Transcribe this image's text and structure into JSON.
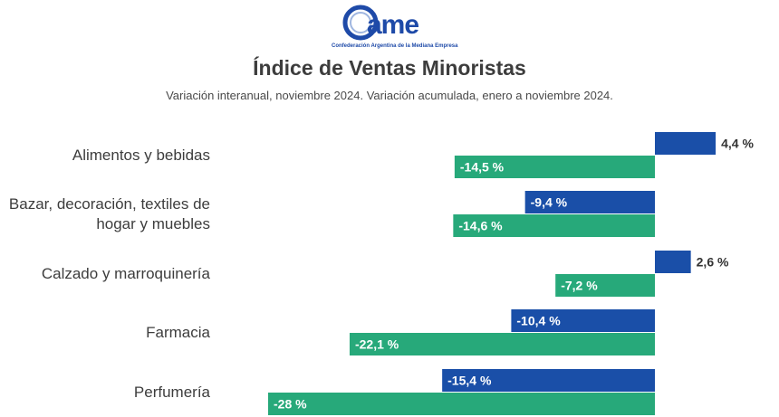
{
  "brand": {
    "logo_text": "came",
    "caption": "Confederación Argentina de la Mediana Empresa"
  },
  "header": {
    "title": "Índice de Ventas Minoristas",
    "subtitle": "Variación interanual, noviembre 2024. Variación acumulada, enero a noviembre 2024."
  },
  "chart_data": {
    "type": "bar",
    "orientation": "horizontal",
    "categories": [
      "Alimentos y bebidas",
      "Bazar, decoración, textiles de hogar y muebles",
      "Calzado y marroquinería",
      "Farmacia",
      "Perfumería"
    ],
    "category_lines": [
      [
        "Alimentos y bebidas"
      ],
      [
        "Bazar, decoración, textiles de",
        "hogar y muebles"
      ],
      [
        "Calzado y marroquinería"
      ],
      [
        "Farmacia"
      ],
      [
        "Perfumería"
      ]
    ],
    "series": [
      {
        "color": "#1a4fa8",
        "values": [
          4.4,
          -9.4,
          2.6,
          -10.4,
          -15.4
        ],
        "labels": [
          "4,4 %",
          "-9,4 %",
          "2,6 %",
          "-10,4 %",
          "-15,4 %"
        ]
      },
      {
        "color": "#27a97a",
        "values": [
          -14.5,
          -14.6,
          -7.2,
          -22.1,
          -28
        ],
        "labels": [
          "-14,5 %",
          "-14,6 %",
          "-7,2 %",
          "-22,1 %",
          "-28 %"
        ]
      }
    ],
    "xlim": [
      -28,
      4.4
    ],
    "grid": false,
    "legend": "none"
  },
  "colors": {
    "brand_blue": "#1e4aa8",
    "title": "#3d3d3d",
    "label_text": "#333333"
  }
}
